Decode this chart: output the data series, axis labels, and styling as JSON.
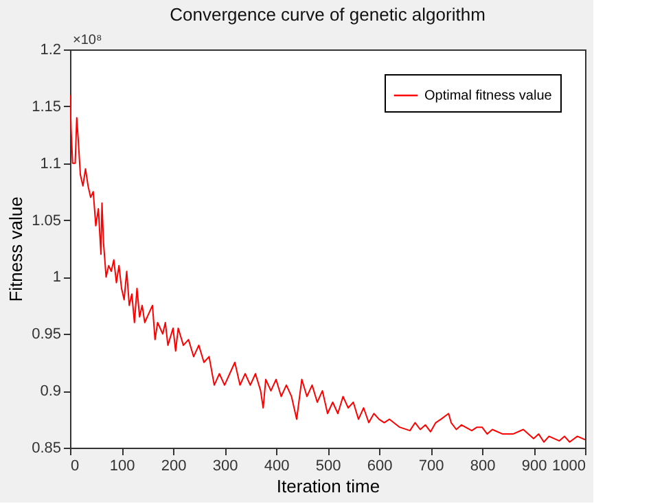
{
  "chart_data": {
    "type": "line",
    "title": "Convergence curve of genetic algorithm",
    "xlabel": "Iteration time",
    "ylabel": "Fitness value",
    "annotations": [
      "×10⁸"
    ],
    "x": [
      0,
      2,
      5,
      10,
      13,
      16,
      20,
      25,
      30,
      35,
      40,
      45,
      50,
      55,
      60,
      62,
      65,
      70,
      75,
      80,
      85,
      90,
      95,
      100,
      105,
      110,
      115,
      120,
      125,
      130,
      135,
      140,
      145,
      150,
      160,
      165,
      170,
      180,
      185,
      190,
      200,
      205,
      210,
      220,
      230,
      240,
      250,
      260,
      270,
      280,
      290,
      300,
      310,
      320,
      330,
      340,
      350,
      360,
      370,
      375,
      380,
      390,
      400,
      410,
      420,
      430,
      440,
      450,
      460,
      470,
      480,
      490,
      500,
      510,
      520,
      530,
      540,
      550,
      560,
      570,
      580,
      590,
      600,
      610,
      620,
      640,
      660,
      670,
      680,
      690,
      700,
      710,
      720,
      735,
      740,
      750,
      760,
      780,
      790,
      800,
      810,
      820,
      840,
      860,
      880,
      900,
      910,
      920,
      930,
      950,
      960,
      970,
      985,
      1000
    ],
    "series": [
      {
        "name": "Optimal fitness value",
        "color": "#ff0000",
        "values": [
          1.16,
          1.13,
          1.1,
          1.1,
          1.14,
          1.12,
          1.09,
          1.08,
          1.095,
          1.08,
          1.07,
          1.075,
          1.045,
          1.06,
          1.02,
          1.065,
          1.03,
          1.0,
          1.01,
          1.005,
          1.015,
          0.995,
          1.01,
          0.99,
          0.98,
          1.005,
          0.975,
          0.985,
          0.96,
          0.99,
          0.965,
          0.975,
          0.96,
          0.965,
          0.975,
          0.945,
          0.96,
          0.95,
          0.96,
          0.94,
          0.955,
          0.935,
          0.955,
          0.94,
          0.945,
          0.93,
          0.94,
          0.925,
          0.93,
          0.905,
          0.915,
          0.905,
          0.915,
          0.925,
          0.905,
          0.915,
          0.905,
          0.915,
          0.9,
          0.885,
          0.91,
          0.9,
          0.91,
          0.895,
          0.905,
          0.895,
          0.875,
          0.91,
          0.895,
          0.905,
          0.89,
          0.9,
          0.88,
          0.89,
          0.88,
          0.895,
          0.885,
          0.89,
          0.875,
          0.885,
          0.872,
          0.88,
          0.875,
          0.872,
          0.875,
          0.868,
          0.865,
          0.872,
          0.866,
          0.87,
          0.864,
          0.872,
          0.875,
          0.88,
          0.872,
          0.866,
          0.87,
          0.865,
          0.868,
          0.868,
          0.862,
          0.866,
          0.862,
          0.862,
          0.866,
          0.858,
          0.862,
          0.855,
          0.86,
          0.856,
          0.86,
          0.855,
          0.86,
          0.857
        ]
      }
    ],
    "xlim": [
      0,
      1000
    ],
    "xticks": [
      0,
      100,
      200,
      300,
      400,
      500,
      600,
      700,
      800,
      900,
      1000
    ],
    "ylim": [
      0.85,
      1.2
    ],
    "yticks": [
      0.85,
      0.9,
      0.95,
      1,
      1.05,
      1.1,
      1.15,
      1.2
    ],
    "grid": false,
    "legend": "top right",
    "marker": "none",
    "line_style": "solid"
  }
}
